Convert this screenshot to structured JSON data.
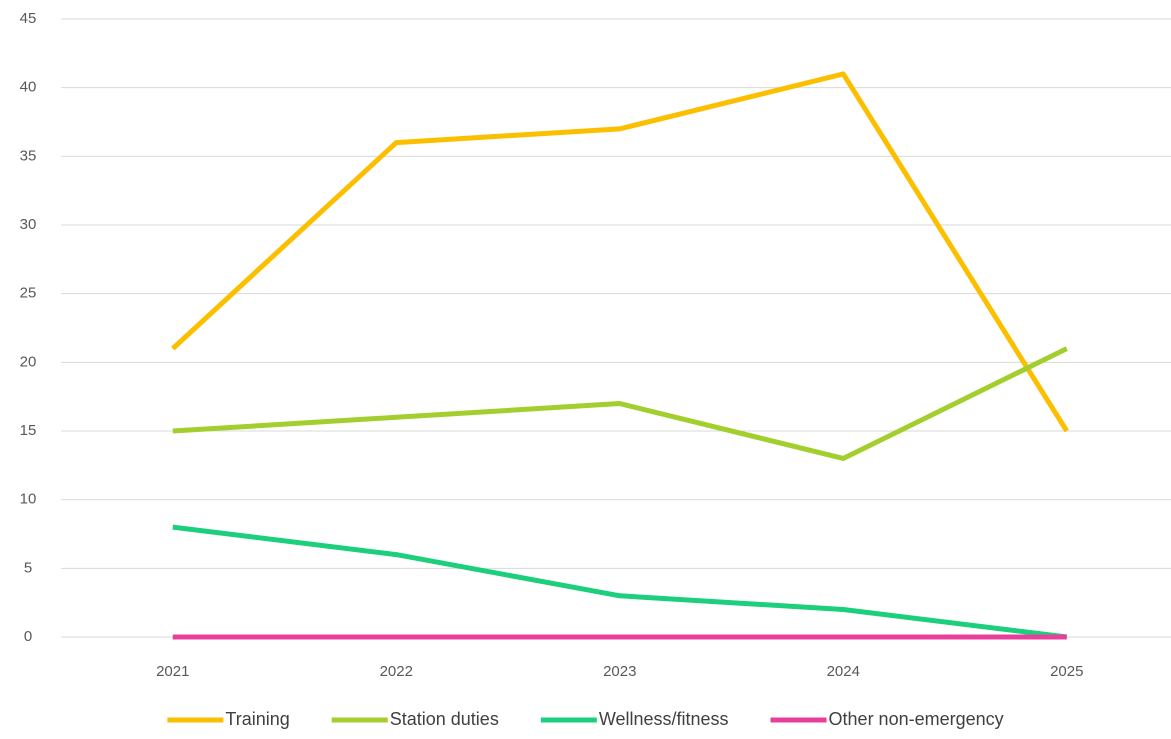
{
  "chart_data": {
    "type": "line",
    "categories": [
      "2021",
      "2022",
      "2023",
      "2024",
      "2025"
    ],
    "series": [
      {
        "name": "Training",
        "color": "#fcbf00",
        "values": [
          21,
          36,
          37,
          41,
          15
        ]
      },
      {
        "name": "Station duties",
        "color": "#a2cf2d",
        "values": [
          15,
          16,
          17,
          13,
          21
        ]
      },
      {
        "name": "Wellness/fitness",
        "color": "#1ccf7c",
        "values": [
          8,
          6,
          3,
          2,
          0
        ]
      },
      {
        "name": "Other non-emergency",
        "color": "#e8409a",
        "values": [
          0,
          0,
          0,
          0,
          0
        ]
      }
    ],
    "ylim": [
      0,
      45
    ],
    "yticks": [
      0,
      5,
      10,
      15,
      20,
      25,
      30,
      35,
      40,
      45
    ],
    "grid": true,
    "legend": "bottom"
  }
}
